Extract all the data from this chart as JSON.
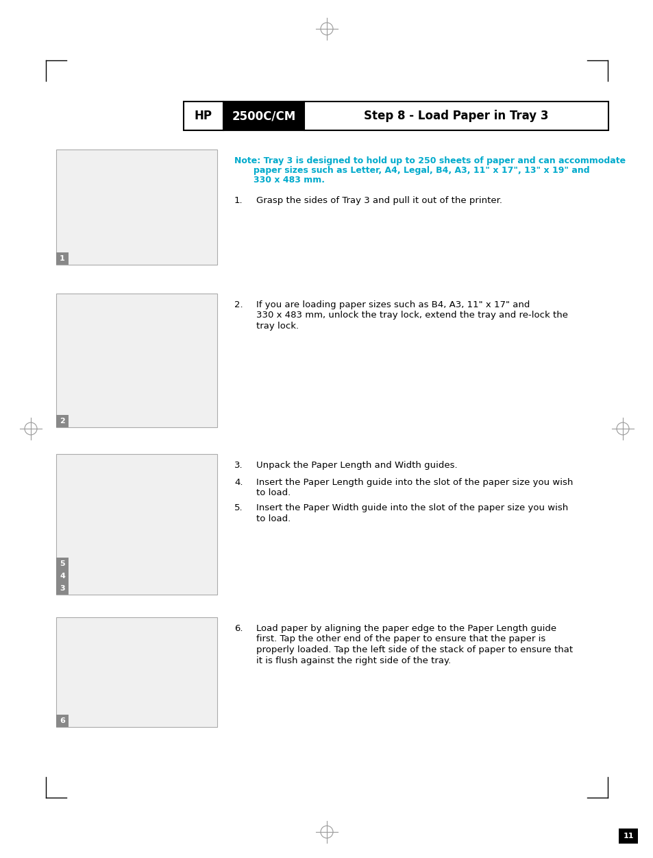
{
  "page_bg": "#ffffff",
  "header_text_hp": "HP",
  "header_text_model": "2500C/CM",
  "header_text_step": "Step 8 - Load Paper in Tray 3",
  "note_color": "#00aacc",
  "note_text_line1": "Note: Tray 3 is designed to hold up to 250 sheets of paper and can accommodate",
  "note_text_line2": "paper sizes such as Letter, A4, Legal, B4, A3, 11\" x 17\", 13\" x 19\" and",
  "note_text_line3": "330 x 483 mm.",
  "step1_num": "1.",
  "step1_text": "Grasp the sides of Tray 3 and pull it out of the printer.",
  "step2_num": "2.",
  "step2_text_line1": "If you are loading paper sizes such as B4, A3, 11\" x 17\" and",
  "step2_text_line2": "330 x 483 mm, unlock the tray lock, extend the tray and re-lock the",
  "step2_text_line3": "tray lock.",
  "step3_num": "3.",
  "step3_text": "Unpack the Paper Length and Width guides.",
  "step4_num": "4.",
  "step4_text_line1": "Insert the Paper Length guide into the slot of the paper size you wish",
  "step4_text_line2": "to load.",
  "step5_num": "5.",
  "step5_text_line1": "Insert the Paper Width guide into the slot of the paper size you wish",
  "step5_text_line2": "to load.",
  "step6_num": "6.",
  "step6_text_line1": "Load paper by aligning the paper edge to the Paper Length guide",
  "step6_text_line2": "first. Tap the other end of the paper to ensure that the paper is",
  "step6_text_line3": "properly loaded. Tap the left side of the stack of paper to ensure that",
  "step6_text_line4": "it is flush against the right side of the tray.",
  "body_text_color": "#000000",
  "text_font_size": 9.5,
  "note_font_size": 9.0,
  "page_number": "11"
}
